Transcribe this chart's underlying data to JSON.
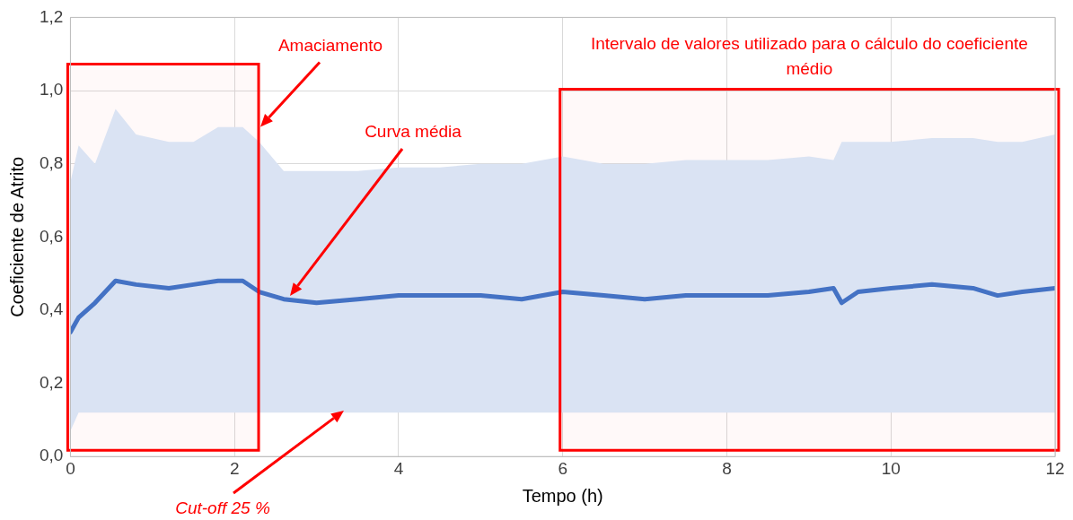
{
  "chart_data": {
    "type": "line",
    "xlabel": "Tempo (h)",
    "ylabel": "Coeficiente de Atrito",
    "xlim": [
      0,
      12
    ],
    "xticks": [
      0,
      2,
      4,
      6,
      8,
      10,
      12
    ],
    "ylim": [
      0,
      1.2
    ],
    "yticks": [
      {
        "value": 0,
        "label": "0,0"
      },
      {
        "value": 0.2,
        "label": "0,2"
      },
      {
        "value": 0.4,
        "label": "0,4"
      },
      {
        "value": 0.6,
        "label": "0,6"
      },
      {
        "value": 0.8,
        "label": "0,8"
      },
      {
        "value": 1,
        "label": "1,0"
      },
      {
        "value": 1.2,
        "label": "1,2"
      }
    ],
    "grid": true,
    "legend": false,
    "marker": "none",
    "line_style": "solid",
    "series": [
      {
        "color": "#4472c4",
        "x": [
          0,
          0.1,
          0.3,
          0.55,
          0.8,
          1.2,
          1.5,
          1.8,
          2.1,
          2.3,
          2.6,
          3,
          3.5,
          4,
          4.5,
          5,
          5.5,
          6,
          6.5,
          7,
          7.5,
          8,
          8.5,
          9,
          9.3,
          9.4,
          9.6,
          10,
          10.5,
          11,
          11.3,
          11.6,
          12
        ],
        "values": [
          0.34,
          0.38,
          0.42,
          0.48,
          0.47,
          0.46,
          0.47,
          0.48,
          0.48,
          0.45,
          0.43,
          0.42,
          0.43,
          0.44,
          0.44,
          0.44,
          0.43,
          0.45,
          0.44,
          0.43,
          0.44,
          0.44,
          0.44,
          0.45,
          0.46,
          0.42,
          0.45,
          0.46,
          0.47,
          0.46,
          0.44,
          0.45,
          0.46
        ],
        "lower": [
          0.07,
          0.12,
          0.12,
          0.12,
          0.12,
          0.12,
          0.12,
          0.12,
          0.12,
          0.12,
          0.12,
          0.12,
          0.12,
          0.12,
          0.12,
          0.12,
          0.12,
          0.12,
          0.12,
          0.12,
          0.12,
          0.12,
          0.12,
          0.12,
          0.12,
          0.12,
          0.12,
          0.12,
          0.12,
          0.12,
          0.12,
          0.12,
          0.12
        ],
        "upper": [
          0.75,
          0.85,
          0.8,
          0.95,
          0.88,
          0.86,
          0.86,
          0.9,
          0.9,
          0.86,
          0.78,
          0.78,
          0.78,
          0.79,
          0.79,
          0.8,
          0.8,
          0.82,
          0.8,
          0.8,
          0.81,
          0.81,
          0.81,
          0.82,
          0.81,
          0.86,
          0.86,
          0.86,
          0.87,
          0.87,
          0.86,
          0.86,
          0.88
        ]
      }
    ],
    "bands": [
      {
        "axis": "x",
        "from": 0,
        "to": 2.25,
        "color": "#ff0000"
      },
      {
        "axis": "x",
        "from": 6,
        "to": 12,
        "color": "#ff0000",
        "label": "Intervalo de valores utilizado para o cálculo do coeficiente médio"
      }
    ],
    "annotations": [
      "Amaciamento",
      "Curva média",
      "Cut-off 25 %"
    ]
  }
}
